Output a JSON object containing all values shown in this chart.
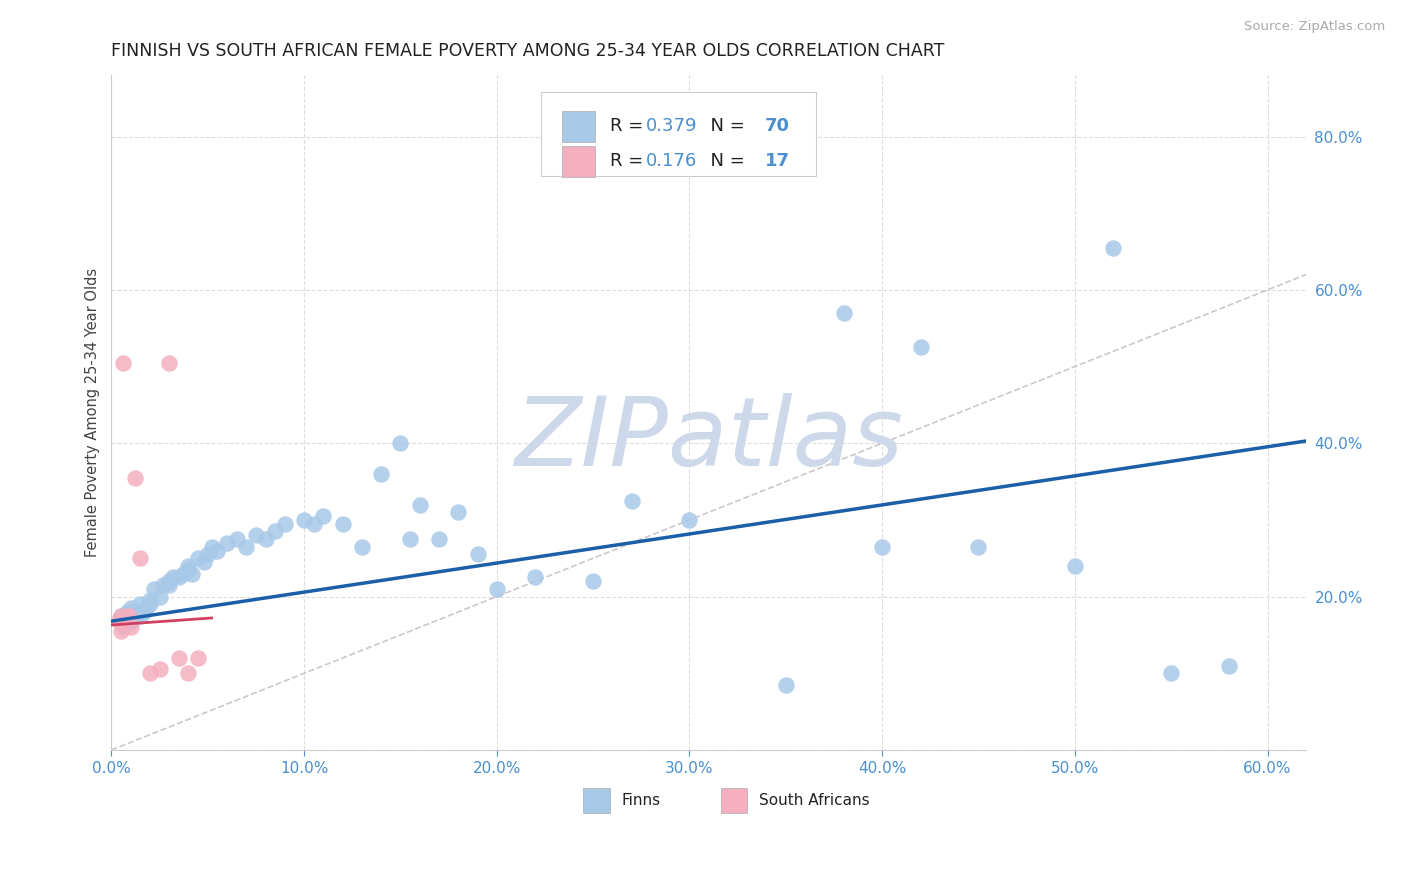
{
  "title": "FINNISH VS SOUTH AFRICAN FEMALE POVERTY AMONG 25-34 YEAR OLDS CORRELATION CHART",
  "source": "Source: ZipAtlas.com",
  "ylabel": "Female Poverty Among 25-34 Year Olds",
  "xlim": [
    0.0,
    0.62
  ],
  "ylim": [
    0.0,
    0.88
  ],
  "xticks": [
    0.0,
    0.1,
    0.2,
    0.3,
    0.4,
    0.5,
    0.6
  ],
  "yticks": [
    0.0,
    0.2,
    0.4,
    0.6,
    0.8
  ],
  "legend_R_finn": "0.379",
  "legend_N_finn": "70",
  "legend_R_sa": "0.176",
  "legend_N_sa": "17",
  "finn_color": "#a8c8e8",
  "finn_line_color": "#1a5fa8",
  "sa_color": "#f4afc0",
  "sa_line_color": "#d04060",
  "ref_line_color": "#c8c0c8",
  "watermark_color": "#cdd8ea",
  "background_color": "#ffffff",
  "tick_color": "#4a8fd0",
  "label_color": "#333333",
  "finns_x": [
    0.005,
    0.005,
    0.005,
    0.006,
    0.007,
    0.008,
    0.008,
    0.009,
    0.009,
    0.01,
    0.01,
    0.01,
    0.01,
    0.012,
    0.013,
    0.015,
    0.015,
    0.017,
    0.018,
    0.02,
    0.02,
    0.022,
    0.025,
    0.027,
    0.03,
    0.03,
    0.032,
    0.035,
    0.037,
    0.04,
    0.04,
    0.042,
    0.045,
    0.048,
    0.05,
    0.052,
    0.055,
    0.06,
    0.065,
    0.07,
    0.075,
    0.08,
    0.085,
    0.09,
    0.1,
    0.105,
    0.11,
    0.12,
    0.13,
    0.14,
    0.15,
    0.155,
    0.16,
    0.17,
    0.18,
    0.19,
    0.2,
    0.22,
    0.25,
    0.27,
    0.3,
    0.35,
    0.38,
    0.4,
    0.42,
    0.45,
    0.5,
    0.52,
    0.55,
    0.58
  ],
  "finns_y": [
    0.165,
    0.17,
    0.175,
    0.16,
    0.175,
    0.17,
    0.18,
    0.165,
    0.175,
    0.17,
    0.175,
    0.18,
    0.185,
    0.175,
    0.18,
    0.175,
    0.19,
    0.18,
    0.185,
    0.19,
    0.195,
    0.21,
    0.2,
    0.215,
    0.22,
    0.215,
    0.225,
    0.225,
    0.23,
    0.235,
    0.24,
    0.23,
    0.25,
    0.245,
    0.255,
    0.265,
    0.26,
    0.27,
    0.275,
    0.265,
    0.28,
    0.275,
    0.285,
    0.295,
    0.3,
    0.295,
    0.305,
    0.295,
    0.265,
    0.36,
    0.4,
    0.275,
    0.32,
    0.275,
    0.31,
    0.255,
    0.21,
    0.225,
    0.22,
    0.325,
    0.3,
    0.085,
    0.57,
    0.265,
    0.525,
    0.265,
    0.24,
    0.655,
    0.1,
    0.11
  ],
  "sa_x": [
    0.004,
    0.005,
    0.005,
    0.005,
    0.006,
    0.007,
    0.008,
    0.009,
    0.01,
    0.012,
    0.015,
    0.02,
    0.025,
    0.03,
    0.035,
    0.04,
    0.045
  ],
  "sa_y": [
    0.17,
    0.175,
    0.165,
    0.155,
    0.505,
    0.17,
    0.175,
    0.175,
    0.16,
    0.355,
    0.25,
    0.1,
    0.105,
    0.505,
    0.12,
    0.1,
    0.12
  ],
  "finn_slope": 0.379,
  "finn_intercept": 0.168,
  "sa_slope": 0.176,
  "sa_intercept": 0.163,
  "sa_line_xmax": 0.052
}
